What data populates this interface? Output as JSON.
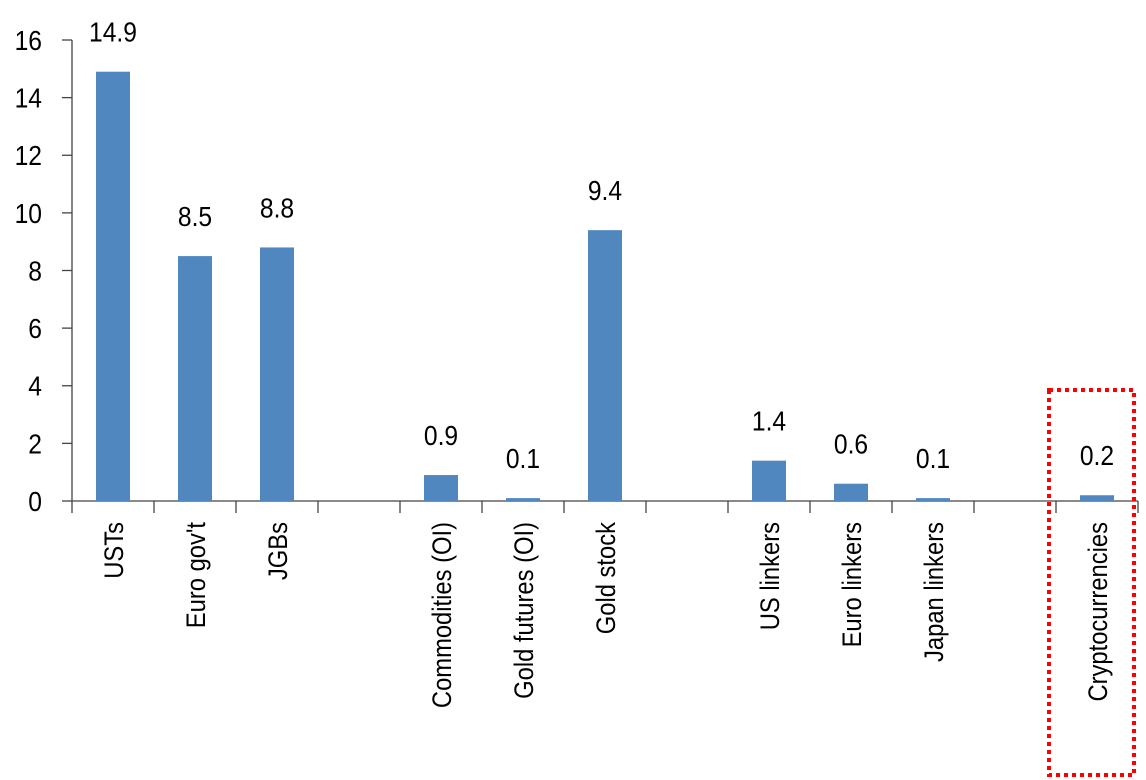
{
  "chart_data": {
    "type": "bar",
    "title": "",
    "xlabel": "",
    "ylabel": "",
    "ylim": [
      0,
      16
    ],
    "yticks": [
      "0",
      "2",
      "4",
      "6",
      "8",
      "10",
      "12",
      "14",
      "16"
    ],
    "grid": false,
    "categories": [
      "USTs",
      "Euro gov't",
      "JGBs",
      "",
      "Commodities (OI)",
      "Gold futures (OI)",
      "Gold stock",
      "",
      "US linkers",
      "Euro linkers",
      "Japan linkers",
      "",
      "Cryptocurrencies"
    ],
    "values": [
      14.9,
      8.5,
      8.8,
      null,
      0.9,
      0.1,
      9.4,
      null,
      1.4,
      0.6,
      0.1,
      null,
      0.2
    ],
    "data_labels": [
      "14.9",
      "8.5",
      "8.8",
      "",
      "0.9",
      "0.1",
      "9.4",
      "",
      "1.4",
      "0.6",
      "0.1",
      "",
      "0.2"
    ],
    "bar_color": "#4f87be",
    "highlight": {
      "category": "Cryptocurrencies",
      "style": "red dotted box",
      "color": "#ff0000"
    }
  }
}
